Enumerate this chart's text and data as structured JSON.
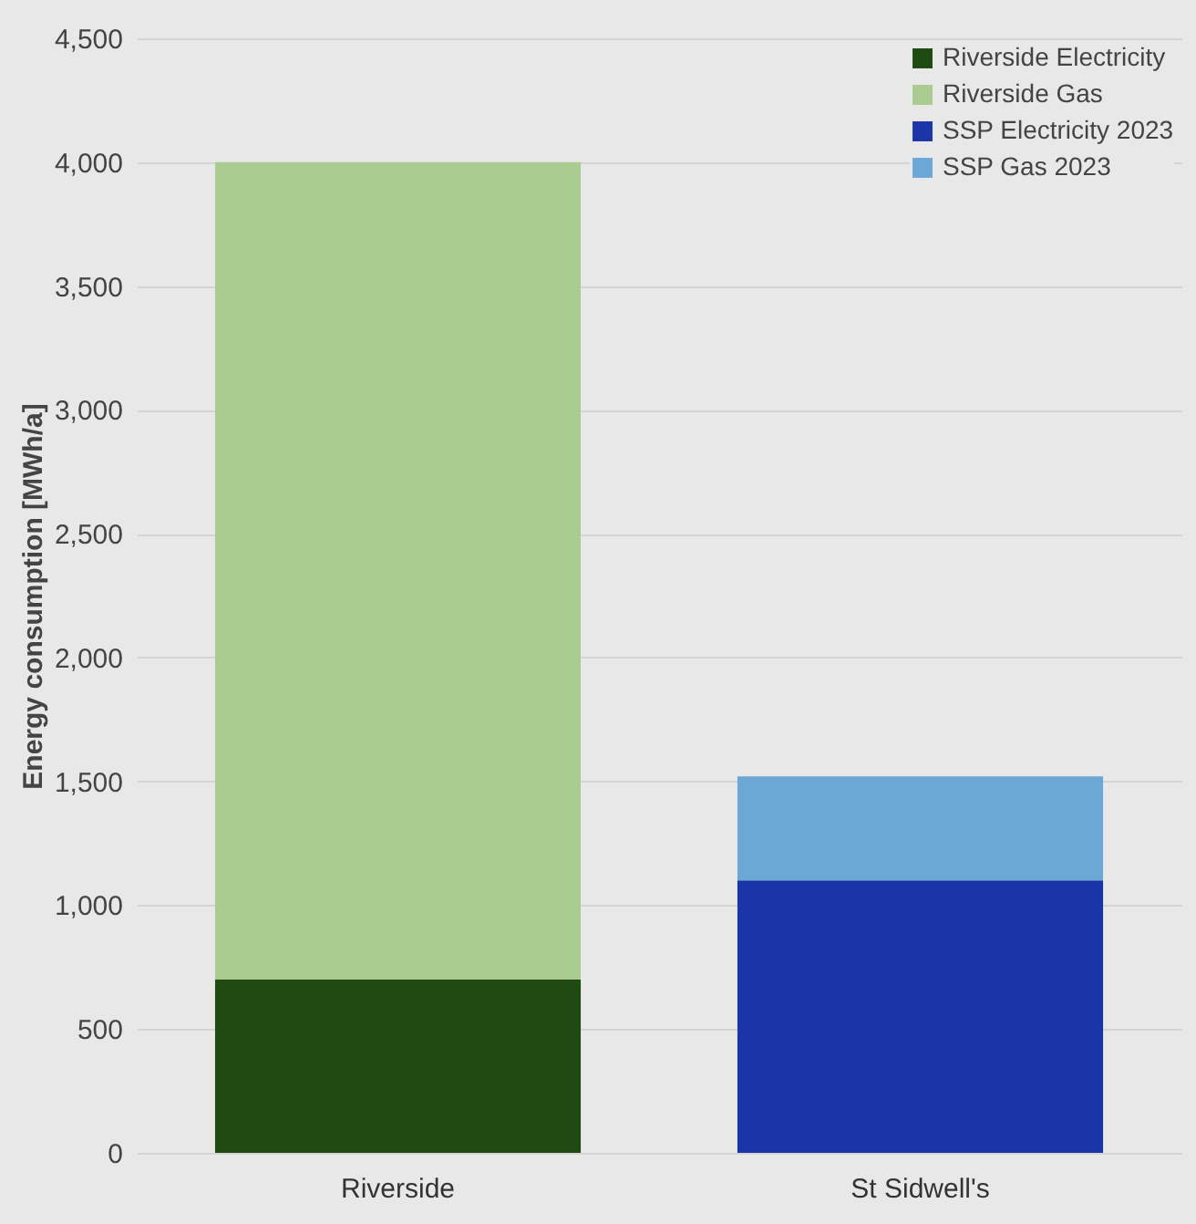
{
  "chart_data": {
    "type": "bar",
    "ylabel": "Energy consumption [MWh/a]",
    "categories": [
      "Riverside",
      "St Sidwell's"
    ],
    "stacked": true,
    "series": [
      {
        "name": "Riverside Electricity",
        "color": "#1f4a12",
        "values": [
          700,
          null
        ]
      },
      {
        "name": "Riverside Gas",
        "color": "#abcc90",
        "values": [
          3300,
          null
        ]
      },
      {
        "name": "SSP Electricity 2023",
        "color": "#1a35a8",
        "values": [
          null,
          1100
        ]
      },
      {
        "name": "SSP Gas 2023",
        "color": "#6ca8d6",
        "values": [
          null,
          420
        ]
      }
    ],
    "ylim": [
      0,
      4500
    ],
    "yticks": [
      0,
      500,
      {
        "value": 1000,
        "label": "1,000"
      },
      {
        "value": 1500,
        "label": "1,500"
      },
      {
        "value": 2000,
        "label": "2,000"
      },
      {
        "value": 2500,
        "label": "2,500"
      },
      {
        "value": 3000,
        "label": "3,000"
      },
      {
        "value": 3500,
        "label": "3,500"
      },
      {
        "value": 4000,
        "label": "4,000"
      },
      {
        "value": 4500,
        "label": "4,500"
      }
    ],
    "grid": "y",
    "legend": "top right"
  }
}
